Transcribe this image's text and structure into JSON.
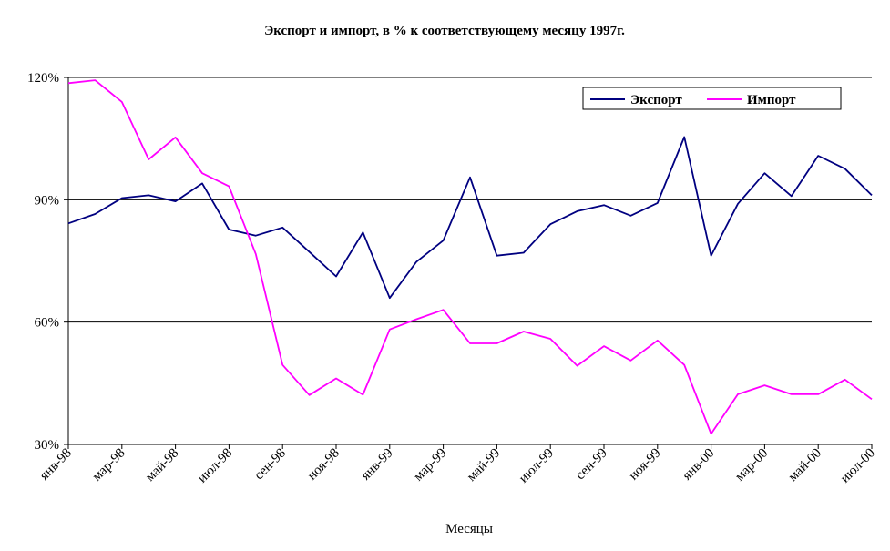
{
  "chart_data": {
    "type": "line",
    "title": "Экспорт и импорт, в % к соответствующему месяцу 1997г.",
    "xlabel": "Месяцы",
    "ylabel": "",
    "ylim": [
      30,
      120
    ],
    "y_ticks": [
      30,
      60,
      90,
      120
    ],
    "y_tick_labels": [
      "30%",
      "60%",
      "90%",
      "120%"
    ],
    "grid": "horizontal",
    "legend_position": "top-right",
    "categories": [
      "янв-98",
      "фев-98",
      "мар-98",
      "апр-98",
      "май-98",
      "июн-98",
      "июл-98",
      "авг-98",
      "сен-98",
      "окт-98",
      "ноя-98",
      "дек-98",
      "янв-99",
      "фев-99",
      "мар-99",
      "апр-99",
      "май-99",
      "июн-99",
      "июл-99",
      "авг-99",
      "сен-99",
      "окт-99",
      "ноя-99",
      "дек-99",
      "янв-00",
      "фев-00",
      "мар-00",
      "апр-00",
      "май-00",
      "июн-00",
      "июл-00"
    ],
    "x_tick_labels": [
      "янв-98",
      "мар-98",
      "май-98",
      "июл-98",
      "сен-98",
      "ноя-98",
      "янв-99",
      "мар-99",
      "май-99",
      "июл-99",
      "сен-99",
      "ноя-99",
      "янв-00",
      "мар-00",
      "май-00",
      "июл-00"
    ],
    "series": [
      {
        "name": "Экспорт",
        "color": "#000080",
        "values": [
          84.2,
          86.5,
          90.4,
          91.1,
          89.6,
          94.0,
          82.7,
          81.2,
          83.2,
          77.2,
          71.2,
          82.0,
          65.9,
          74.8,
          80.0,
          95.5,
          76.3,
          77.0,
          84.0,
          87.2,
          88.7,
          86.1,
          89.2,
          105.4,
          76.3,
          89.0,
          96.5,
          90.9,
          100.8,
          97.6,
          91.1
        ]
      },
      {
        "name": "Импорт",
        "color": "#ff00ff",
        "values": [
          118.6,
          119.3,
          114.0,
          99.9,
          105.3,
          96.5,
          93.3,
          76.7,
          49.5,
          42.1,
          46.2,
          42.2,
          58.2,
          60.7,
          63.0,
          54.8,
          54.8,
          57.7,
          55.9,
          49.3,
          54.1,
          50.6,
          55.5,
          49.5,
          32.6,
          42.3,
          44.5,
          42.3,
          42.3,
          45.9,
          41.1
        ]
      }
    ]
  }
}
